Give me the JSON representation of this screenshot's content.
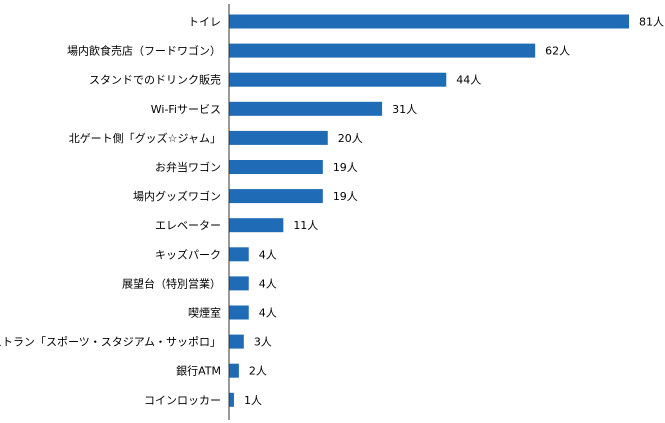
{
  "chart_data": {
    "type": "bar",
    "orientation": "horizontal",
    "categories": [
      "トイレ",
      "場内飲食売店（フードワゴン）",
      "スタンドでのドリンク販売",
      "Wi-Fiサービス",
      "北ゲート側「グッズ☆ジャム」",
      "お弁当ワゴン",
      "場内グッズワゴン",
      "エレベーター",
      "キッズパーク",
      "展望台（特別営業）",
      "喫煙室",
      "レストラン「スポーツ・スタジアム・サッポロ」",
      "銀行ATM",
      "コインロッカー"
    ],
    "values": [
      81,
      62,
      44,
      31,
      20,
      19,
      19,
      11,
      4,
      4,
      4,
      3,
      2,
      1
    ],
    "value_labels": [
      "81人",
      "62人",
      "44人",
      "31人",
      "20人",
      "19人",
      "19人",
      "11人",
      "4人",
      "4人",
      "4人",
      "3人",
      "2人",
      "1人"
    ],
    "unit": "人",
    "bar_color": "#1f6bb5",
    "axis_color": "#333333",
    "grid": false,
    "legend": "none",
    "xlim": [
      0,
      81
    ]
  }
}
